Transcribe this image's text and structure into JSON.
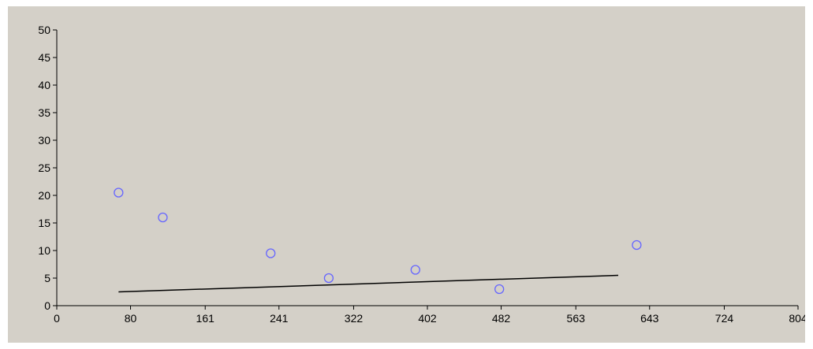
{
  "chart_data": {
    "type": "scatter",
    "title": "",
    "xlabel": "",
    "ylabel": "",
    "xlim": [
      0,
      804
    ],
    "ylim": [
      0,
      50
    ],
    "x_ticks": [
      "0",
      "80",
      "161",
      "241",
      "322",
      "402",
      "482",
      "563",
      "643",
      "724",
      "804"
    ],
    "y_ticks": [
      "0",
      "5",
      "10",
      "15",
      "20",
      "25",
      "30",
      "35",
      "40",
      "45",
      "50"
    ],
    "grid": false,
    "legend": false,
    "series": [
      {
        "type": "scatter",
        "marker": "circle-open",
        "color": "#6666ff",
        "points": [
          {
            "x": 67,
            "y": 20.5
          },
          {
            "x": 115,
            "y": 16
          },
          {
            "x": 232,
            "y": 9.5
          },
          {
            "x": 295,
            "y": 5
          },
          {
            "x": 389,
            "y": 6.5
          },
          {
            "x": 480,
            "y": 3
          },
          {
            "x": 629,
            "y": 11
          }
        ]
      },
      {
        "type": "line",
        "color": "#000000",
        "points": [
          {
            "x": 67,
            "y": 2.5
          },
          {
            "x": 609,
            "y": 5.5
          }
        ]
      }
    ]
  },
  "colors": {
    "plot_background": "#d4d0c8",
    "page_background": "#ffffff",
    "axis": "#000000"
  }
}
